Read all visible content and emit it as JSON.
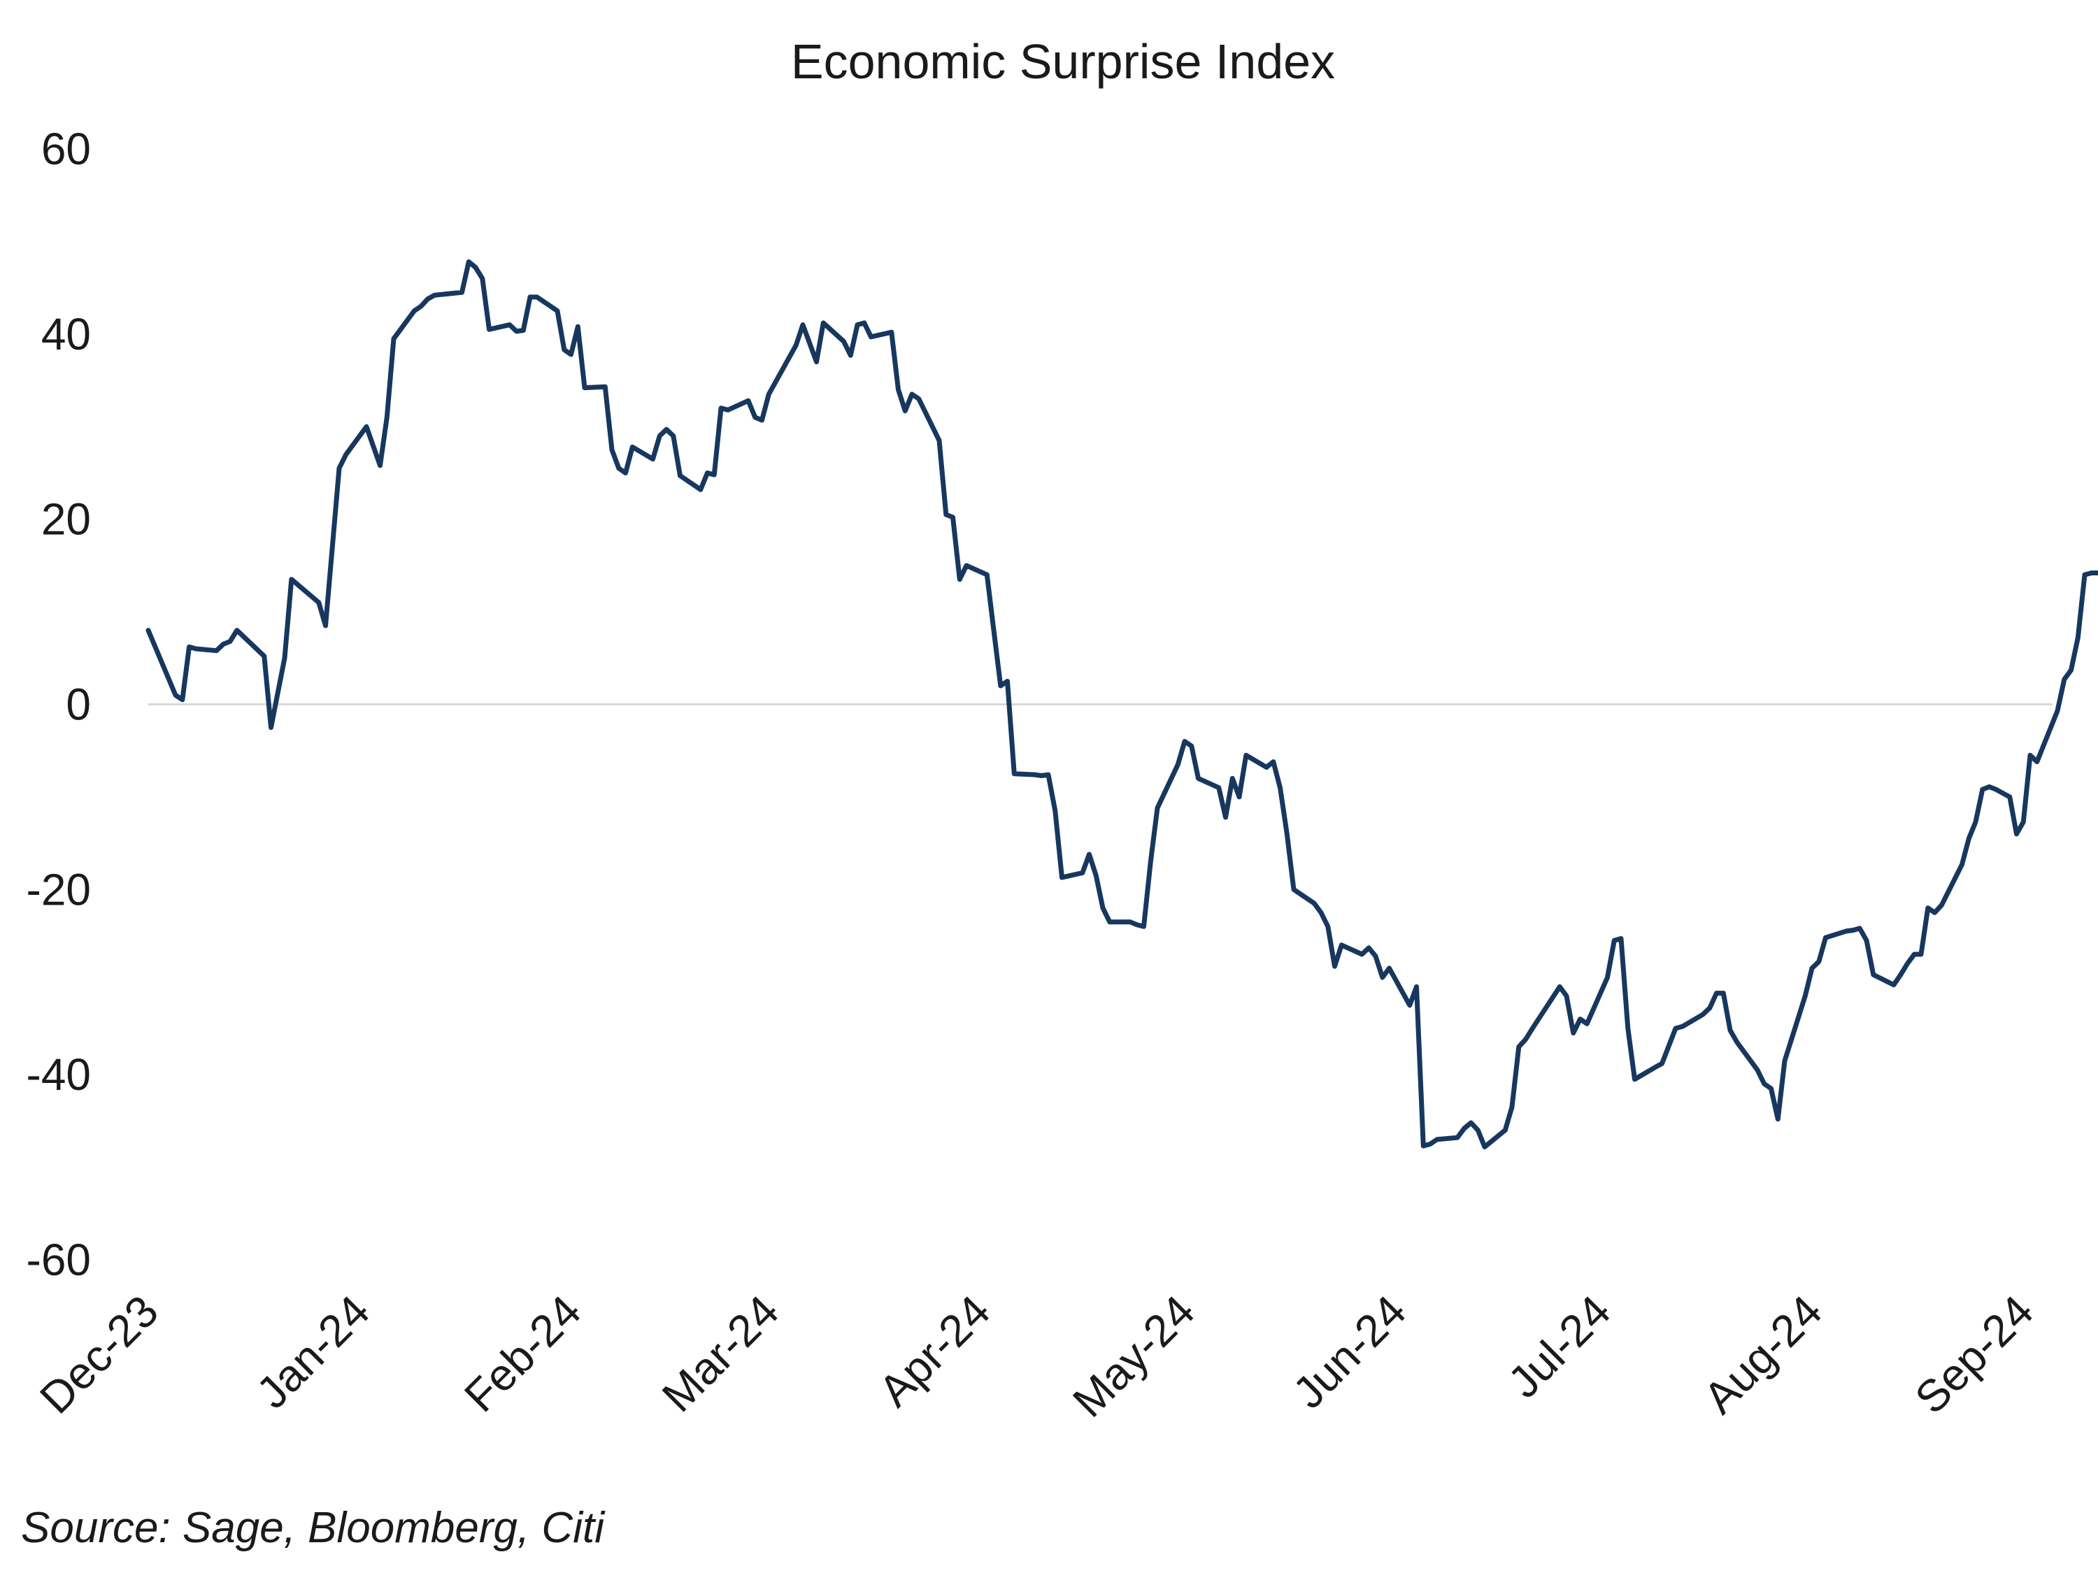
{
  "chart_data": {
    "type": "line",
    "title": "Economic Surprise Index",
    "source": "Source: Sage, Bloomberg, Citi",
    "xlabel": "",
    "ylabel": "",
    "ylim": [
      -60,
      60
    ],
    "yticks": [
      60,
      40,
      20,
      0,
      -20,
      -40,
      -60
    ],
    "xticks": [
      "Dec-23",
      "Jan-24",
      "Feb-24",
      "Mar-24",
      "Apr-24",
      "May-24",
      "Jun-24",
      "Jul-24",
      "Aug-24",
      "Sep-24"
    ],
    "grid": false,
    "legend": "none",
    "series": [
      {
        "color": "#17375e",
        "points": [
          [
            "2023-12-01",
            8
          ],
          [
            "2023-12-05",
            1
          ],
          [
            "2023-12-06",
            0.5
          ],
          [
            "2023-12-07",
            6.2
          ],
          [
            "2023-12-08",
            6
          ],
          [
            "2023-12-11",
            5.8
          ],
          [
            "2023-12-12",
            6.5
          ],
          [
            "2023-12-13",
            6.8
          ],
          [
            "2023-12-14",
            8
          ],
          [
            "2023-12-18",
            5.2
          ],
          [
            "2023-12-19",
            -2.5
          ],
          [
            "2023-12-21",
            5
          ],
          [
            "2023-12-22",
            13.5
          ],
          [
            "2023-12-26",
            11
          ],
          [
            "2023-12-27",
            8.5
          ],
          [
            "2023-12-29",
            25.5
          ],
          [
            "2023-12-30",
            27
          ],
          [
            "2024-01-02",
            30
          ],
          [
            "2024-01-04",
            25.8
          ],
          [
            "2024-01-05",
            31
          ],
          [
            "2024-01-06",
            39.5
          ],
          [
            "2024-01-09",
            42.5
          ],
          [
            "2024-01-10",
            43
          ],
          [
            "2024-01-11",
            43.8
          ],
          [
            "2024-01-12",
            44.2
          ],
          [
            "2024-01-16",
            44.5
          ],
          [
            "2024-01-17",
            47.8
          ],
          [
            "2024-01-18",
            47.2
          ],
          [
            "2024-01-19",
            46
          ],
          [
            "2024-01-20",
            40.5
          ],
          [
            "2024-01-23",
            41
          ],
          [
            "2024-01-24",
            40.3
          ],
          [
            "2024-01-25",
            40.4
          ],
          [
            "2024-01-26",
            44
          ],
          [
            "2024-01-27",
            44
          ],
          [
            "2024-01-30",
            42.5
          ],
          [
            "2024-01-31",
            38.3
          ],
          [
            "2024-02-01",
            37.8
          ],
          [
            "2024-02-02",
            40.8
          ],
          [
            "2024-02-03",
            34.2
          ],
          [
            "2024-02-06",
            34.3
          ],
          [
            "2024-02-07",
            27.5
          ],
          [
            "2024-02-08",
            25.5
          ],
          [
            "2024-02-09",
            25
          ],
          [
            "2024-02-10",
            27.8
          ],
          [
            "2024-02-13",
            26.5
          ],
          [
            "2024-02-14",
            29
          ],
          [
            "2024-02-15",
            29.7
          ],
          [
            "2024-02-16",
            29
          ],
          [
            "2024-02-17",
            24.7
          ],
          [
            "2024-02-20",
            23.2
          ],
          [
            "2024-02-21",
            25
          ],
          [
            "2024-02-22",
            24.8
          ],
          [
            "2024-02-23",
            32
          ],
          [
            "2024-02-24",
            31.8
          ],
          [
            "2024-02-27",
            32.8
          ],
          [
            "2024-02-28",
            31
          ],
          [
            "2024-02-29",
            30.7
          ],
          [
            "2024-03-01",
            33.5
          ],
          [
            "2024-03-05",
            38.8
          ],
          [
            "2024-03-06",
            41
          ],
          [
            "2024-03-07",
            39
          ],
          [
            "2024-03-08",
            37
          ],
          [
            "2024-03-09",
            41.2
          ],
          [
            "2024-03-12",
            39.2
          ],
          [
            "2024-03-13",
            37.7
          ],
          [
            "2024-03-14",
            41
          ],
          [
            "2024-03-15",
            41.2
          ],
          [
            "2024-03-16",
            39.7
          ],
          [
            "2024-03-19",
            40.2
          ],
          [
            "2024-03-20",
            34
          ],
          [
            "2024-03-21",
            31.7
          ],
          [
            "2024-03-22",
            33.5
          ],
          [
            "2024-03-23",
            33
          ],
          [
            "2024-03-26",
            28.5
          ],
          [
            "2024-03-27",
            20.5
          ],
          [
            "2024-03-28",
            20.2
          ],
          [
            "2024-03-29",
            13.5
          ],
          [
            "2024-03-30",
            15
          ],
          [
            "2024-04-02",
            14
          ],
          [
            "2024-04-03",
            8
          ],
          [
            "2024-04-04",
            2
          ],
          [
            "2024-04-05",
            2.5
          ],
          [
            "2024-04-06",
            -7.5
          ],
          [
            "2024-04-09",
            -7.6
          ],
          [
            "2024-04-10",
            -7.7
          ],
          [
            "2024-04-11",
            -7.6
          ],
          [
            "2024-04-12",
            -11.5
          ],
          [
            "2024-04-13",
            -18.7
          ],
          [
            "2024-04-16",
            -18.2
          ],
          [
            "2024-04-17",
            -16.2
          ],
          [
            "2024-04-18",
            -18.5
          ],
          [
            "2024-04-19",
            -22
          ],
          [
            "2024-04-20",
            -23.5
          ],
          [
            "2024-04-23",
            -23.5
          ],
          [
            "2024-04-24",
            -23.8
          ],
          [
            "2024-04-25",
            -24
          ],
          [
            "2024-04-26",
            -17
          ],
          [
            "2024-04-27",
            -11.2
          ],
          [
            "2024-04-30",
            -6.5
          ],
          [
            "2024-05-01",
            -4
          ],
          [
            "2024-05-02",
            -4.5
          ],
          [
            "2024-05-03",
            -8
          ],
          [
            "2024-05-06",
            -9
          ],
          [
            "2024-05-07",
            -12.2
          ],
          [
            "2024-05-08",
            -8
          ],
          [
            "2024-05-09",
            -10
          ],
          [
            "2024-05-10",
            -5.5
          ],
          [
            "2024-05-13",
            -6.8
          ],
          [
            "2024-05-14",
            -6.2
          ],
          [
            "2024-05-15",
            -9
          ],
          [
            "2024-05-16",
            -14
          ],
          [
            "2024-05-17",
            -20
          ],
          [
            "2024-05-20",
            -21.5
          ],
          [
            "2024-05-21",
            -22.5
          ],
          [
            "2024-05-22",
            -24
          ],
          [
            "2024-05-23",
            -28.3
          ],
          [
            "2024-05-24",
            -26
          ],
          [
            "2024-05-27",
            -27
          ],
          [
            "2024-05-28",
            -26.3
          ],
          [
            "2024-05-29",
            -27.2
          ],
          [
            "2024-05-30",
            -29.5
          ],
          [
            "2024-05-31",
            -28.5
          ],
          [
            "2024-06-03",
            -32.5
          ],
          [
            "2024-06-04",
            -30.5
          ],
          [
            "2024-06-05",
            -47.7
          ],
          [
            "2024-06-06",
            -47.5
          ],
          [
            "2024-06-07",
            -47
          ],
          [
            "2024-06-10",
            -46.8
          ],
          [
            "2024-06-11",
            -45.8
          ],
          [
            "2024-06-12",
            -45.2
          ],
          [
            "2024-06-13",
            -46
          ],
          [
            "2024-06-14",
            -47.8
          ],
          [
            "2024-06-17",
            -46
          ],
          [
            "2024-06-18",
            -43.5
          ],
          [
            "2024-06-19",
            -37
          ],
          [
            "2024-06-20",
            -36.2
          ],
          [
            "2024-06-21",
            -35
          ],
          [
            "2024-06-25",
            -30.5
          ],
          [
            "2024-06-26",
            -31.5
          ],
          [
            "2024-06-27",
            -35.5
          ],
          [
            "2024-06-28",
            -34
          ],
          [
            "2024-06-29",
            -34.5
          ],
          [
            "2024-07-02",
            -29.5
          ],
          [
            "2024-07-03",
            -25.5
          ],
          [
            "2024-07-04",
            -25.3
          ],
          [
            "2024-07-05",
            -35
          ],
          [
            "2024-07-06",
            -40.5
          ],
          [
            "2024-07-09",
            -39.2
          ],
          [
            "2024-07-10",
            -38.8
          ],
          [
            "2024-07-12",
            -35
          ],
          [
            "2024-07-13",
            -34.8
          ],
          [
            "2024-07-16",
            -33.5
          ],
          [
            "2024-07-17",
            -32.8
          ],
          [
            "2024-07-18",
            -31.2
          ],
          [
            "2024-07-19",
            -31.2
          ],
          [
            "2024-07-20",
            -35.2
          ],
          [
            "2024-07-21",
            -36.5
          ],
          [
            "2024-07-24",
            -39.5
          ],
          [
            "2024-07-25",
            -41
          ],
          [
            "2024-07-26",
            -41.5
          ],
          [
            "2024-07-27",
            -44.8
          ],
          [
            "2024-07-28",
            -38.5
          ],
          [
            "2024-07-31",
            -31.5
          ],
          [
            "2024-08-01",
            -28.5
          ],
          [
            "2024-08-02",
            -27.8
          ],
          [
            "2024-08-03",
            -25.2
          ],
          [
            "2024-08-06",
            -24.5
          ],
          [
            "2024-08-07",
            -24.4
          ],
          [
            "2024-08-08",
            -24.2
          ],
          [
            "2024-08-09",
            -25.5
          ],
          [
            "2024-08-10",
            -29.2
          ],
          [
            "2024-08-13",
            -30.3
          ],
          [
            "2024-08-14",
            -29.2
          ],
          [
            "2024-08-15",
            -28
          ],
          [
            "2024-08-16",
            -27
          ],
          [
            "2024-08-17",
            -27
          ],
          [
            "2024-08-18",
            -22
          ],
          [
            "2024-08-19",
            -22.5
          ],
          [
            "2024-08-20",
            -21.7
          ],
          [
            "2024-08-23",
            -17.3
          ],
          [
            "2024-08-24",
            -14.5
          ],
          [
            "2024-08-25",
            -12.7
          ],
          [
            "2024-08-26",
            -9.2
          ],
          [
            "2024-08-27",
            -8.9
          ],
          [
            "2024-08-28",
            -9.2
          ],
          [
            "2024-08-30",
            -10
          ],
          [
            "2024-08-31",
            -14
          ],
          [
            "2024-09-01",
            -12.7
          ],
          [
            "2024-09-02",
            -5.5
          ],
          [
            "2024-09-03",
            -6.2
          ],
          [
            "2024-09-06",
            -0.7
          ],
          [
            "2024-09-07",
            2.7
          ],
          [
            "2024-09-08",
            3.7
          ],
          [
            "2024-09-09",
            7.2
          ],
          [
            "2024-09-10",
            14
          ],
          [
            "2024-09-11",
            14.2
          ],
          [
            "2024-09-13",
            14.2
          ],
          [
            "2024-09-14",
            14.3
          ],
          [
            "2024-09-15",
            14.5
          ],
          [
            "2024-09-17",
            10
          ]
        ]
      }
    ]
  }
}
